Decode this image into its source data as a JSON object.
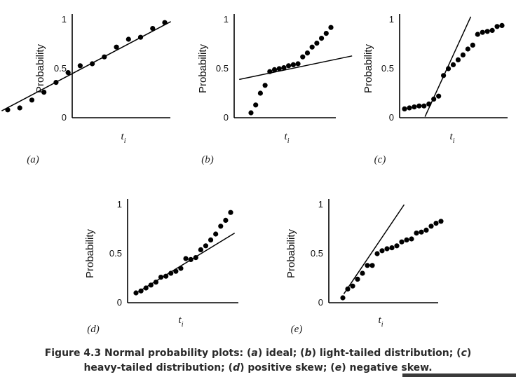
{
  "chart_data": [
    {
      "type": "scatter",
      "panel_label": "(a)",
      "ylabel": "Probability",
      "xlabel": "t",
      "xlabel_sub": "i",
      "ylim": [
        0,
        1
      ],
      "yticks": [
        "0",
        "0.5",
        "1"
      ],
      "x": [
        1,
        2,
        3,
        4,
        5,
        6,
        7,
        8,
        9,
        10,
        11,
        12,
        13,
        14
      ],
      "y": [
        0.08,
        0.1,
        0.18,
        0.26,
        0.36,
        0.46,
        0.53,
        0.55,
        0.62,
        0.72,
        0.8,
        0.82,
        0.91,
        0.97
      ],
      "fit_line": [
        [
          0.5,
          0.07
        ],
        [
          14.5,
          0.98
        ]
      ]
    },
    {
      "type": "scatter",
      "panel_label": "(b)",
      "ylabel": "Probability",
      "xlabel": "t",
      "xlabel_sub": "i",
      "ylim": [
        0,
        1
      ],
      "yticks": [
        "0",
        "0.5",
        "1"
      ],
      "x": [
        1,
        2,
        3,
        4,
        5,
        6,
        7,
        8,
        9,
        10,
        11,
        12,
        13,
        14,
        15,
        16,
        17,
        18
      ],
      "y": [
        0.05,
        0.13,
        0.25,
        0.33,
        0.47,
        0.49,
        0.5,
        0.51,
        0.53,
        0.54,
        0.55,
        0.62,
        0.66,
        0.72,
        0.76,
        0.81,
        0.86,
        0.92
      ],
      "fit_line": [
        [
          -1.5,
          0.39
        ],
        [
          22.5,
          0.63
        ]
      ]
    },
    {
      "type": "scatter",
      "panel_label": "(c)",
      "ylabel": "Probability",
      "xlabel": "t",
      "xlabel_sub": "i",
      "ylim": [
        0,
        1
      ],
      "yticks": [
        "0",
        "0.5",
        "1"
      ],
      "x": [
        1,
        2,
        3,
        4,
        5,
        6,
        7,
        8,
        9,
        10,
        11,
        12,
        13,
        14,
        15,
        16,
        17,
        18,
        19,
        20,
        21
      ],
      "y": [
        0.09,
        0.1,
        0.11,
        0.12,
        0.12,
        0.14,
        0.19,
        0.22,
        0.43,
        0.5,
        0.54,
        0.59,
        0.64,
        0.7,
        0.74,
        0.85,
        0.87,
        0.88,
        0.89,
        0.93,
        0.94
      ],
      "fit_line": [
        [
          5.2,
          0.01
        ],
        [
          14.6,
          1.03
        ]
      ]
    },
    {
      "type": "scatter",
      "panel_label": "(d)",
      "ylabel": "Probability",
      "xlabel": "t",
      "xlabel_sub": "i",
      "ylim": [
        0,
        1
      ],
      "yticks": [
        "0",
        "0.5",
        "1"
      ],
      "x": [
        1,
        2,
        3,
        4,
        5,
        6,
        7,
        8,
        9,
        10,
        11,
        12,
        13,
        14,
        15,
        16,
        17,
        18,
        19,
        20
      ],
      "y": [
        0.1,
        0.12,
        0.15,
        0.18,
        0.21,
        0.26,
        0.27,
        0.3,
        0.32,
        0.35,
        0.45,
        0.44,
        0.46,
        0.54,
        0.58,
        0.64,
        0.7,
        0.78,
        0.84,
        0.92
      ],
      "fit_line": [
        [
          0.8,
          0.09
        ],
        [
          20.8,
          0.71
        ]
      ]
    },
    {
      "type": "scatter",
      "panel_label": "(e)",
      "ylabel": "Probability",
      "xlabel": "t",
      "xlabel_sub": "i",
      "ylim": [
        0,
        1
      ],
      "yticks": [
        "0",
        "0.5",
        "1"
      ],
      "x": [
        1,
        2,
        3,
        4,
        5,
        6,
        7,
        8,
        9,
        10,
        11,
        12,
        13,
        14,
        15,
        16,
        17,
        18,
        19,
        20,
        21
      ],
      "y": [
        0.05,
        0.14,
        0.17,
        0.24,
        0.3,
        0.38,
        0.38,
        0.5,
        0.53,
        0.55,
        0.56,
        0.58,
        0.62,
        0.64,
        0.65,
        0.71,
        0.72,
        0.74,
        0.78,
        0.81,
        0.83
      ],
      "fit_line": [
        [
          1.2,
          0.09
        ],
        [
          13.5,
          1.0
        ]
      ]
    }
  ],
  "caption": {
    "segments": [
      {
        "text": "Figure 4.3 Normal probability plots: (",
        "italic": false
      },
      {
        "text": "a",
        "italic": true
      },
      {
        "text": ") ideal; (",
        "italic": false
      },
      {
        "text": "b",
        "italic": true
      },
      {
        "text": ") light-tailed distribution; (",
        "italic": false
      },
      {
        "text": "c",
        "italic": true
      },
      {
        "text": ") heavy-tailed distribution; (",
        "italic": false
      },
      {
        "text": "d",
        "italic": true
      },
      {
        "text": ") positive skew; (",
        "italic": false
      },
      {
        "text": "e",
        "italic": true
      },
      {
        "text": ") negative skew.",
        "italic": false
      }
    ]
  }
}
